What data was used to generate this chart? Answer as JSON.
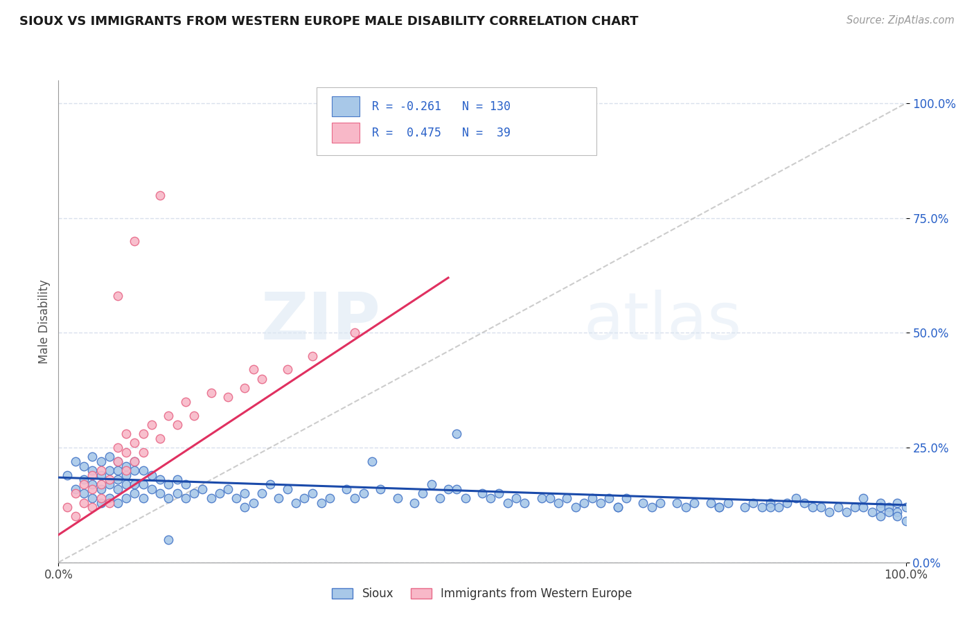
{
  "title": "SIOUX VS IMMIGRANTS FROM WESTERN EUROPE MALE DISABILITY CORRELATION CHART",
  "source": "Source: ZipAtlas.com",
  "ylabel": "Male Disability",
  "watermark_zip": "ZIP",
  "watermark_atlas": "atlas",
  "color_sioux_fill": "#a8c8e8",
  "color_sioux_edge": "#4878c8",
  "color_sioux_line": "#1a4aaa",
  "color_imm_fill": "#f8b8c8",
  "color_imm_edge": "#e86888",
  "color_imm_line": "#e03060",
  "color_diagonal": "#c0c0c0",
  "color_grid": "#d8e0ec",
  "color_text_blue": "#2860c8",
  "color_label": "#555555",
  "ytick_labels": [
    "0.0%",
    "25.0%",
    "50.0%",
    "75.0%",
    "100.0%"
  ],
  "ytick_values": [
    0.0,
    0.25,
    0.5,
    0.75,
    1.0
  ],
  "xlim": [
    0.0,
    1.0
  ],
  "ylim": [
    0.0,
    1.05
  ],
  "sioux_x": [
    0.01,
    0.02,
    0.02,
    0.03,
    0.03,
    0.03,
    0.04,
    0.04,
    0.04,
    0.04,
    0.05,
    0.05,
    0.05,
    0.05,
    0.06,
    0.06,
    0.06,
    0.06,
    0.07,
    0.07,
    0.07,
    0.07,
    0.07,
    0.08,
    0.08,
    0.08,
    0.08,
    0.09,
    0.09,
    0.09,
    0.1,
    0.1,
    0.1,
    0.11,
    0.11,
    0.12,
    0.12,
    0.13,
    0.13,
    0.14,
    0.14,
    0.15,
    0.15,
    0.16,
    0.17,
    0.18,
    0.19,
    0.2,
    0.21,
    0.22,
    0.23,
    0.24,
    0.25,
    0.26,
    0.27,
    0.28,
    0.29,
    0.3,
    0.31,
    0.32,
    0.34,
    0.35,
    0.36,
    0.38,
    0.4,
    0.42,
    0.43,
    0.45,
    0.46,
    0.47,
    0.48,
    0.5,
    0.51,
    0.52,
    0.53,
    0.54,
    0.55,
    0.57,
    0.59,
    0.6,
    0.61,
    0.62,
    0.63,
    0.64,
    0.65,
    0.66,
    0.67,
    0.69,
    0.7,
    0.71,
    0.73,
    0.74,
    0.75,
    0.77,
    0.78,
    0.79,
    0.81,
    0.82,
    0.83,
    0.84,
    0.85,
    0.86,
    0.87,
    0.88,
    0.89,
    0.9,
    0.91,
    0.92,
    0.93,
    0.94,
    0.95,
    0.95,
    0.96,
    0.97,
    0.97,
    0.97,
    0.98,
    0.98,
    0.99,
    0.99,
    0.99,
    1.0,
    1.0,
    0.44,
    0.13,
    0.22,
    0.47,
    0.58,
    0.66,
    0.78,
    0.09,
    0.37,
    0.84
  ],
  "sioux_y": [
    0.19,
    0.16,
    0.22,
    0.15,
    0.18,
    0.21,
    0.14,
    0.17,
    0.2,
    0.23,
    0.13,
    0.16,
    0.19,
    0.22,
    0.14,
    0.17,
    0.2,
    0.23,
    0.13,
    0.16,
    0.18,
    0.2,
    0.22,
    0.14,
    0.17,
    0.19,
    0.21,
    0.15,
    0.17,
    0.2,
    0.14,
    0.17,
    0.2,
    0.16,
    0.19,
    0.15,
    0.18,
    0.14,
    0.17,
    0.15,
    0.18,
    0.14,
    0.17,
    0.15,
    0.16,
    0.14,
    0.15,
    0.16,
    0.14,
    0.15,
    0.13,
    0.15,
    0.17,
    0.14,
    0.16,
    0.13,
    0.14,
    0.15,
    0.13,
    0.14,
    0.16,
    0.14,
    0.15,
    0.16,
    0.14,
    0.13,
    0.15,
    0.14,
    0.16,
    0.28,
    0.14,
    0.15,
    0.14,
    0.15,
    0.13,
    0.14,
    0.13,
    0.14,
    0.13,
    0.14,
    0.12,
    0.13,
    0.14,
    0.13,
    0.14,
    0.12,
    0.14,
    0.13,
    0.12,
    0.13,
    0.13,
    0.12,
    0.13,
    0.13,
    0.12,
    0.13,
    0.12,
    0.13,
    0.12,
    0.13,
    0.12,
    0.13,
    0.14,
    0.13,
    0.12,
    0.12,
    0.11,
    0.12,
    0.11,
    0.12,
    0.14,
    0.12,
    0.11,
    0.13,
    0.12,
    0.1,
    0.12,
    0.11,
    0.13,
    0.11,
    0.1,
    0.12,
    0.09,
    0.17,
    0.05,
    0.12,
    0.16,
    0.14,
    0.12,
    0.12,
    0.22,
    0.22,
    0.12
  ],
  "imm_x": [
    0.01,
    0.02,
    0.02,
    0.03,
    0.03,
    0.04,
    0.04,
    0.04,
    0.05,
    0.05,
    0.05,
    0.06,
    0.06,
    0.07,
    0.07,
    0.08,
    0.08,
    0.08,
    0.09,
    0.09,
    0.1,
    0.1,
    0.11,
    0.12,
    0.13,
    0.14,
    0.15,
    0.16,
    0.18,
    0.2,
    0.22,
    0.24,
    0.27,
    0.3,
    0.35,
    0.23,
    0.07,
    0.09,
    0.12
  ],
  "imm_y": [
    0.12,
    0.1,
    0.15,
    0.13,
    0.17,
    0.12,
    0.16,
    0.19,
    0.14,
    0.17,
    0.2,
    0.13,
    0.18,
    0.22,
    0.25,
    0.2,
    0.24,
    0.28,
    0.22,
    0.26,
    0.24,
    0.28,
    0.3,
    0.27,
    0.32,
    0.3,
    0.35,
    0.32,
    0.37,
    0.36,
    0.38,
    0.4,
    0.42,
    0.45,
    0.5,
    0.42,
    0.58,
    0.7,
    0.8
  ],
  "imm_line_x": [
    0.0,
    0.46
  ],
  "imm_line_y": [
    0.06,
    0.62
  ],
  "sioux_line_x": [
    0.0,
    1.0
  ],
  "sioux_line_y": [
    0.185,
    0.125
  ]
}
